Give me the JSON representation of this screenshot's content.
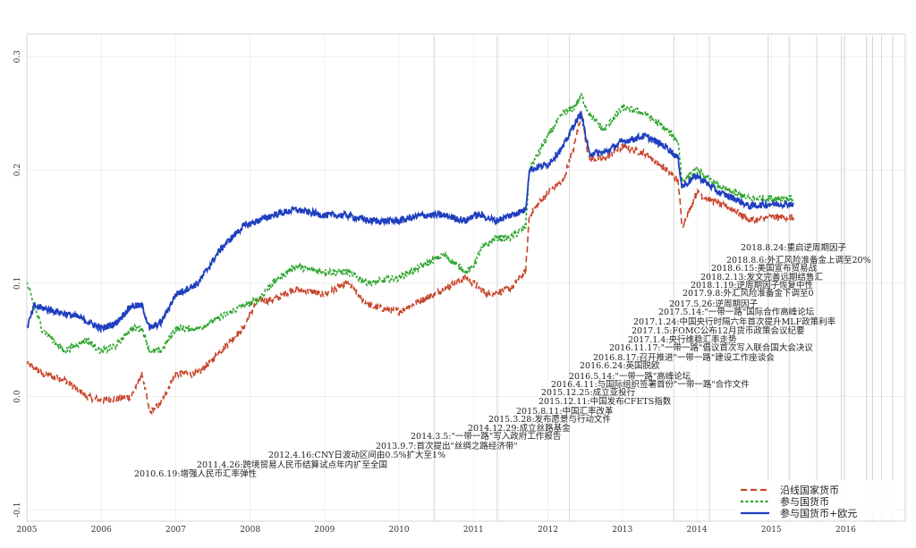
{
  "chart_data": {
    "type": "line",
    "xlim": [
      2005.0,
      2016.8
    ],
    "ylim": [
      -0.11,
      0.32
    ],
    "grid": true,
    "legend_position": "bottom-right",
    "x_ticks": [
      {
        "v": 2005,
        "label": "2005"
      },
      {
        "v": 2006,
        "label": "2006"
      },
      {
        "v": 2007,
        "label": "2007"
      },
      {
        "v": 2008,
        "label": "2008"
      },
      {
        "v": 2009,
        "label": "2009"
      },
      {
        "v": 2010,
        "label": "2010"
      },
      {
        "v": 2011,
        "label": "2011"
      },
      {
        "v": 2012,
        "label": "2012"
      },
      {
        "v": 2013,
        "label": "2013"
      },
      {
        "v": 2014,
        "label": "2014"
      },
      {
        "v": 2015,
        "label": "2015"
      },
      {
        "v": 2016,
        "label": "2016"
      }
    ],
    "y_ticks": [
      {
        "v": -0.1,
        "label": "-0.1"
      },
      {
        "v": 0.0,
        "label": "0.0"
      },
      {
        "v": 0.1,
        "label": "0.1"
      },
      {
        "v": 0.2,
        "label": "0.2"
      },
      {
        "v": 0.3,
        "label": "0.3"
      }
    ],
    "series": [
      {
        "name": "沿线国家货币",
        "color": "#c8442a",
        "dash": "7,4",
        "x": [
          2005.0,
          2005.2,
          2005.5,
          2005.8,
          2006.0,
          2006.2,
          2006.4,
          2006.55,
          2006.65,
          2006.8,
          2007.0,
          2007.3,
          2007.6,
          2007.9,
          2008.1,
          2008.3,
          2008.6,
          2009.0,
          2009.3,
          2009.6,
          2010.0,
          2010.3,
          2010.6,
          2010.9,
          2011.2,
          2011.5,
          2011.7,
          2011.75,
          2012.0,
          2012.2,
          2012.35,
          2012.45,
          2012.55,
          2012.75,
          2013.0,
          2013.3,
          2013.6,
          2013.75,
          2013.8,
          2014.0,
          2014.3,
          2014.5,
          2014.7,
          2015.0,
          2015.3
        ],
        "y": [
          0.03,
          0.02,
          0.015,
          0.0,
          -0.003,
          -0.002,
          0.0,
          0.02,
          -0.015,
          -0.005,
          0.02,
          0.02,
          0.04,
          0.06,
          0.085,
          0.085,
          0.095,
          0.09,
          0.1,
          0.08,
          0.075,
          0.085,
          0.095,
          0.105,
          0.09,
          0.095,
          0.11,
          0.16,
          0.18,
          0.19,
          0.22,
          0.25,
          0.21,
          0.21,
          0.22,
          0.215,
          0.2,
          0.19,
          0.15,
          0.18,
          0.17,
          0.165,
          0.155,
          0.158,
          0.158
        ]
      },
      {
        "name": "参与国货币",
        "color": "#2ea52e",
        "dash": "3,2.5",
        "x": [
          2005.0,
          2005.2,
          2005.5,
          2005.8,
          2006.0,
          2006.2,
          2006.4,
          2006.55,
          2006.65,
          2006.8,
          2007.0,
          2007.3,
          2007.6,
          2007.9,
          2008.1,
          2008.3,
          2008.6,
          2009.0,
          2009.3,
          2009.6,
          2010.0,
          2010.3,
          2010.6,
          2010.9,
          2011.0,
          2011.1,
          2011.3,
          2011.5,
          2011.7,
          2011.75,
          2012.0,
          2012.2,
          2012.35,
          2012.45,
          2012.55,
          2012.75,
          2013.0,
          2013.3,
          2013.6,
          2013.75,
          2013.8,
          2014.0,
          2014.3,
          2014.5,
          2014.7,
          2015.0,
          2015.3
        ],
        "y": [
          0.1,
          0.06,
          0.04,
          0.05,
          0.04,
          0.045,
          0.06,
          0.06,
          0.04,
          0.04,
          0.06,
          0.06,
          0.07,
          0.08,
          0.085,
          0.1,
          0.115,
          0.11,
          0.11,
          0.1,
          0.105,
          0.115,
          0.125,
          0.11,
          0.115,
          0.13,
          0.14,
          0.14,
          0.15,
          0.2,
          0.23,
          0.25,
          0.255,
          0.265,
          0.25,
          0.235,
          0.255,
          0.25,
          0.235,
          0.225,
          0.19,
          0.2,
          0.185,
          0.18,
          0.175,
          0.175,
          0.175
        ]
      },
      {
        "name": "参与国货币+欧元",
        "color": "#1f3fbf",
        "dash": "",
        "x": [
          2005.0,
          2005.1,
          2005.4,
          2005.7,
          2006.0,
          2006.2,
          2006.4,
          2006.55,
          2006.65,
          2006.8,
          2007.0,
          2007.3,
          2007.6,
          2007.9,
          2008.1,
          2008.3,
          2008.6,
          2009.0,
          2009.3,
          2009.6,
          2010.0,
          2010.3,
          2010.6,
          2010.9,
          2011.0,
          2011.1,
          2011.3,
          2011.5,
          2011.7,
          2011.75,
          2012.0,
          2012.2,
          2012.35,
          2012.45,
          2012.55,
          2012.75,
          2013.0,
          2013.3,
          2013.6,
          2013.75,
          2013.8,
          2014.0,
          2014.3,
          2014.5,
          2014.7,
          2015.0,
          2015.3
        ],
        "y": [
          0.06,
          0.08,
          0.075,
          0.07,
          0.06,
          0.065,
          0.08,
          0.08,
          0.06,
          0.065,
          0.09,
          0.1,
          0.13,
          0.15,
          0.155,
          0.16,
          0.165,
          0.16,
          0.16,
          0.155,
          0.155,
          0.16,
          0.16,
          0.155,
          0.16,
          0.16,
          0.155,
          0.16,
          0.165,
          0.2,
          0.205,
          0.22,
          0.24,
          0.25,
          0.215,
          0.215,
          0.225,
          0.23,
          0.22,
          0.21,
          0.185,
          0.195,
          0.18,
          0.175,
          0.168,
          0.17,
          0.17
        ]
      }
    ],
    "event_lines": [
      2010.47,
      2011.32,
      2012.29,
      2013.69,
      2014.17,
      2014.96,
      2015.24,
      2015.61,
      2015.94,
      2015.98,
      2016.28,
      2016.36,
      2016.48,
      2016.63,
      2016.87,
      2017.01,
      2017.07,
      2017.36,
      2017.4,
      2017.69,
      2018.05,
      2018.12,
      2018.45,
      2018.59,
      2018.65
    ],
    "annotations": [
      {
        "text": "2018.8.24:重启逆周期因子",
        "ax": 828,
        "ay": 280
      },
      {
        "text": "2018.8.6:外汇风险准备金上调至20%",
        "ax": 812,
        "ay": 294
      },
      {
        "text": "2018.6.15:美国宣布贸易战",
        "ax": 795,
        "ay": 303
      },
      {
        "text": "2018.2.13:发文完善远期结售汇",
        "ax": 783,
        "ay": 313
      },
      {
        "text": "2018.1.19:逆周期因子恢复中性",
        "ax": 772,
        "ay": 322
      },
      {
        "text": "2017.9.8:外汇风险准备金下调至0",
        "ax": 763,
        "ay": 331
      },
      {
        "text": "2017.5.26:逆周期因子",
        "ax": 748,
        "ay": 343
      },
      {
        "text": "2017.5.14:\"一带一路\"国际合作高峰论坛",
        "ax": 736,
        "ay": 352
      },
      {
        "text": "2017.1.24:中国央行时隔六年首次提升MLF政策利率",
        "ax": 708,
        "ay": 363
      },
      {
        "text": "2017.1.5:FOMC公布12月货币政策会议纪要",
        "ax": 706,
        "ay": 373
      },
      {
        "text": "2017.1.4:央行维稳汇率走势",
        "ax": 702,
        "ay": 383
      },
      {
        "text": "2016.11.17:\"一带一路\"倡议首次写入联合国大会决议",
        "ax": 681,
        "ay": 392
      },
      {
        "text": "2016.8.17:召开推进\"一带一路\"建设工作座谈会",
        "ax": 663,
        "ay": 403
      },
      {
        "text": "2016.6.24:英国脱欧",
        "ax": 648,
        "ay": 412
      },
      {
        "text": "2016.5.14:\"一带一路\"高峰论坛",
        "ax": 636,
        "ay": 424
      },
      {
        "text": "2016.4.11:与国际组织签署首份\"一带一路\"合作文件",
        "ax": 616,
        "ay": 433
      },
      {
        "text": "2015.12.25:成立亚投行",
        "ax": 605,
        "ay": 442
      },
      {
        "text": "2015.12.11:中国发布CFETS指数",
        "ax": 602,
        "ay": 452
      },
      {
        "text": "2015.8.11:中国汇率改革",
        "ax": 577,
        "ay": 463
      },
      {
        "text": "2015.3.28:发布愿景与行动文件",
        "ax": 546,
        "ay": 472
      },
      {
        "text": "2014.12.29:成立丝路基金",
        "ax": 523,
        "ay": 482
      },
      {
        "text": "2014.3.5:\"一带一路\"写入政府工作报告",
        "ax": 459,
        "ay": 491
      },
      {
        "text": "2013.9.7:首次提出\"丝绸之路经济带\"",
        "ax": 420,
        "ay": 502
      },
      {
        "text": "2012.4.16:CNY日波动区间由0.5%扩大至1%",
        "ax": 300,
        "ay": 512
      },
      {
        "text": "2011.4.26:跨境贸易人民币结算试点年内扩至全国",
        "ax": 220,
        "ay": 523
      },
      {
        "text": "2010.6.19:增强人民币汇率弹性",
        "ax": 150,
        "ay": 533
      }
    ]
  }
}
